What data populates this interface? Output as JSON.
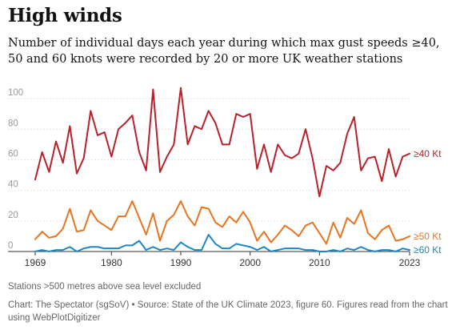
{
  "title": "High winds",
  "subtitle": "Number of individual days each year during which max gust speeds ≥40, 50 and 60 knots were recorded by 20 or more UK weather stations",
  "footnote": "Stations >500 metres above sea level excluded",
  "source": "Chart: The Spectator (sgSoV) • Source: State of the UK Climate 2023, figure 60. Figures read from the chart using WebPlotDigitizer",
  "chart_data": {
    "type": "line",
    "x": [
      1969,
      1970,
      1971,
      1972,
      1973,
      1974,
      1975,
      1976,
      1977,
      1978,
      1979,
      1980,
      1981,
      1982,
      1983,
      1984,
      1985,
      1986,
      1987,
      1988,
      1989,
      1990,
      1991,
      1992,
      1993,
      1994,
      1995,
      1996,
      1997,
      1998,
      1999,
      2000,
      2001,
      2002,
      2003,
      2004,
      2005,
      2006,
      2007,
      2008,
      2009,
      2010,
      2011,
      2012,
      2013,
      2014,
      2015,
      2016,
      2017,
      2018,
      2019,
      2020,
      2021,
      2022,
      2023
    ],
    "xticks": [
      1969,
      1980,
      1990,
      2000,
      2010,
      2023
    ],
    "yticks": [
      0,
      20,
      40,
      60,
      80,
      100
    ],
    "ylim": [
      0,
      110
    ],
    "xlim": [
      1969,
      2023
    ],
    "grid": "horizontal",
    "legend": "labels at line ends (right)",
    "series": [
      {
        "name": "≥40 Kt",
        "color": "#b8202a",
        "values": [
          47,
          65,
          52,
          72,
          58,
          82,
          51,
          61,
          92,
          76,
          78,
          62,
          80,
          84,
          89,
          65,
          53,
          106,
          52,
          62,
          70,
          107,
          70,
          82,
          80,
          92,
          84,
          70,
          70,
          90,
          88,
          90,
          54,
          70,
          52,
          70,
          63,
          61,
          64,
          80,
          61,
          36,
          56,
          53,
          58,
          77,
          88,
          53,
          61,
          62,
          46,
          67,
          49,
          62,
          64
        ]
      },
      {
        "name": "≥50 Kt",
        "color": "#e87421",
        "values": [
          8,
          13,
          9,
          10,
          15,
          28,
          13,
          14,
          27,
          20,
          17,
          14,
          23,
          23,
          33,
          22,
          11,
          25,
          7,
          20,
          24,
          33,
          23,
          17,
          29,
          28,
          19,
          16,
          23,
          19,
          26,
          19,
          7,
          13,
          6,
          11,
          17,
          14,
          10,
          17,
          19,
          12,
          5,
          19,
          9,
          22,
          18,
          27,
          12,
          8,
          14,
          17,
          7,
          8,
          10
        ]
      },
      {
        "name": "≥60 Kt",
        "color": "#1a88c8",
        "values": [
          0,
          1,
          0,
          1,
          1,
          3,
          0,
          2,
          3,
          3,
          2,
          2,
          2,
          4,
          4,
          7,
          1,
          3,
          1,
          2,
          1,
          6,
          3,
          1,
          1,
          11,
          5,
          2,
          2,
          5,
          4,
          3,
          1,
          3,
          0,
          1,
          2,
          2,
          2,
          1,
          1,
          0,
          0,
          1,
          0,
          2,
          1,
          3,
          1,
          0,
          1,
          1,
          0,
          2,
          1
        ]
      }
    ]
  }
}
